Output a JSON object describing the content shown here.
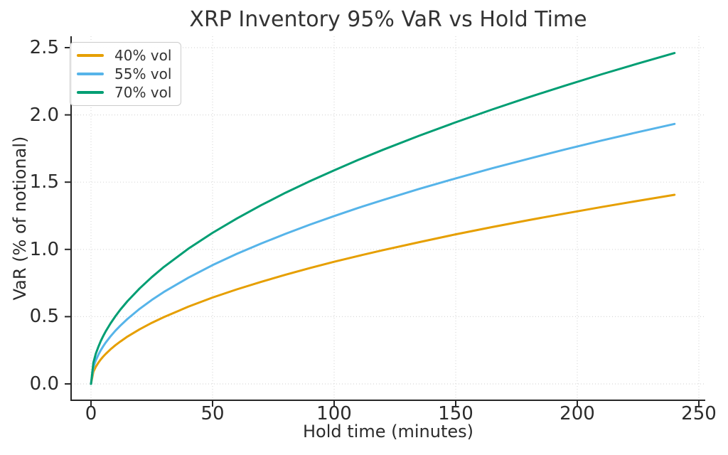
{
  "chart_data": {
    "type": "line",
    "title": "XRP Inventory 95% VaR vs Hold Time",
    "xlabel": "Hold time (minutes)",
    "ylabel": "VaR (% of notional)",
    "x": [
      0,
      1,
      2,
      3,
      4,
      5,
      6,
      8,
      10,
      12,
      15,
      20,
      25,
      30,
      40,
      50,
      60,
      70,
      80,
      90,
      100,
      110,
      120,
      135,
      150,
      165,
      180,
      195,
      210,
      225,
      240
    ],
    "series": [
      {
        "name": "40% vol",
        "color": "#E69F00",
        "values": [
          0,
          0.091,
          0.128,
          0.157,
          0.182,
          0.203,
          0.222,
          0.257,
          0.287,
          0.314,
          0.352,
          0.406,
          0.454,
          0.497,
          0.574,
          0.642,
          0.703,
          0.759,
          0.812,
          0.861,
          0.908,
          0.952,
          0.994,
          1.054,
          1.112,
          1.166,
          1.218,
          1.267,
          1.315,
          1.361,
          1.406
        ]
      },
      {
        "name": "55% vol",
        "color": "#56B4E9",
        "values": [
          0,
          0.125,
          0.176,
          0.216,
          0.25,
          0.279,
          0.306,
          0.353,
          0.395,
          0.432,
          0.483,
          0.558,
          0.624,
          0.684,
          0.789,
          0.883,
          0.967,
          1.044,
          1.116,
          1.184,
          1.248,
          1.309,
          1.367,
          1.45,
          1.528,
          1.603,
          1.674,
          1.743,
          1.809,
          1.872,
          1.933
        ]
      },
      {
        "name": "70% vol",
        "color": "#009E73",
        "values": [
          0,
          0.159,
          0.225,
          0.275,
          0.318,
          0.355,
          0.389,
          0.449,
          0.502,
          0.55,
          0.615,
          0.71,
          0.794,
          0.87,
          1.005,
          1.123,
          1.23,
          1.329,
          1.421,
          1.507,
          1.588,
          1.666,
          1.74,
          1.845,
          1.945,
          2.04,
          2.131,
          2.218,
          2.302,
          2.382,
          2.46
        ]
      }
    ],
    "xlim": [
      -8.19,
      252.63
    ],
    "ylim": [
      -0.1216,
      2.5846
    ],
    "xticks": {
      "values": [
        0,
        50,
        100,
        150,
        200,
        250
      ],
      "labels": [
        "0",
        "50",
        "100",
        "150",
        "200",
        "250"
      ]
    },
    "yticks": {
      "values": [
        0.0,
        0.5,
        1.0,
        1.5,
        2.0,
        2.5
      ],
      "labels": [
        "0.0",
        "0.5",
        "1.0",
        "1.5",
        "2.0",
        "2.5"
      ]
    },
    "grid": {
      "visible": true,
      "style": "dotted",
      "color": "#d8d8d8"
    },
    "legend": {
      "position": "upper-left",
      "entries": [
        "40% vol",
        "55% vol",
        "70% vol"
      ]
    },
    "axis_color": "#262626",
    "text_color": "#2b2b2b",
    "line_width": 3
  }
}
